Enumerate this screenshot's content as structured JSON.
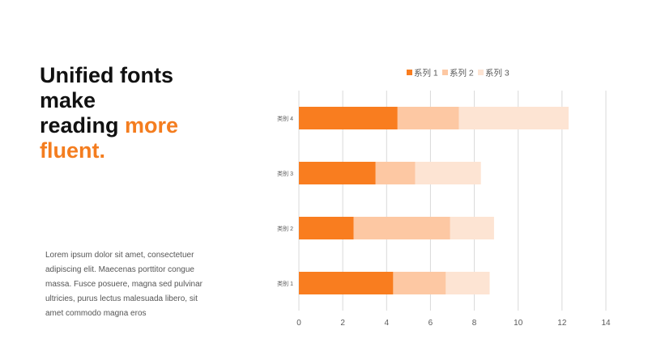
{
  "headline": {
    "line1": "Unified fonts",
    "line2": "make",
    "line3_prefix": "reading ",
    "line3_accent": "more",
    "line4_accent": "fluent."
  },
  "body_text": "Lorem ipsum dolor sit amet, consectetuer adipiscing elit. Maecenas porttitor congue massa. Fusce posuere, magna sed pulvinar ultricies, purus lectus malesuada libero, sit amet commodo magna eros",
  "colors": {
    "accent": "#f47d1f",
    "series": [
      "#f97d1f",
      "#fdc8a3",
      "#fde4d3"
    ]
  },
  "chart_data": {
    "type": "bar",
    "orientation": "horizontal",
    "stacked": true,
    "categories": [
      "类别 1",
      "类别 2",
      "类别 3",
      "类别 4"
    ],
    "series": [
      {
        "name": "系列 1",
        "values": [
          4.3,
          2.5,
          3.5,
          4.5
        ]
      },
      {
        "name": "系列 2",
        "values": [
          2.4,
          4.4,
          1.8,
          2.8
        ]
      },
      {
        "name": "系列 3",
        "values": [
          2.0,
          2.0,
          3.0,
          5.0
        ]
      }
    ],
    "xlim": [
      0,
      14
    ],
    "xticks": [
      "0",
      "2",
      "4",
      "6",
      "8",
      "10",
      "12",
      "14"
    ],
    "grid": true,
    "legend": "top"
  }
}
